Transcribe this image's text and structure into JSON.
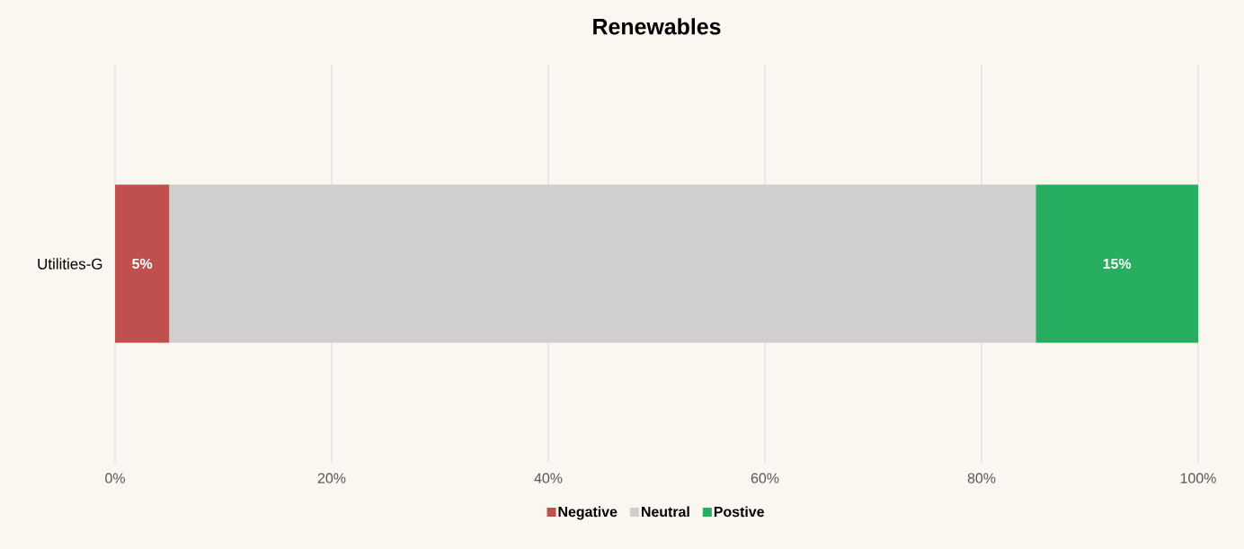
{
  "chart_data": {
    "type": "bar",
    "orientation": "horizontal",
    "stacked": true,
    "title": "Renewables",
    "categories": [
      "Utilities-G"
    ],
    "series": [
      {
        "name": "Negative",
        "color": "#c0504d",
        "values": [
          5
        ],
        "value_labels": [
          "5%"
        ]
      },
      {
        "name": "Neutral",
        "color": "#d0cece",
        "values": [
          80
        ],
        "value_labels": [
          null
        ]
      },
      {
        "name": "Postive",
        "color": "#27ae60",
        "values": [
          15
        ],
        "value_labels": [
          "15%"
        ]
      }
    ],
    "xlim": [
      0,
      100
    ],
    "xticks": [
      {
        "value": 0,
        "label": "0%"
      },
      {
        "value": 20,
        "label": "20%"
      },
      {
        "value": 40,
        "label": "40%"
      },
      {
        "value": 60,
        "label": "60%"
      },
      {
        "value": 80,
        "label": "80%"
      },
      {
        "value": 100,
        "label": "100%"
      }
    ],
    "grid": "x",
    "legend": "bottom"
  }
}
